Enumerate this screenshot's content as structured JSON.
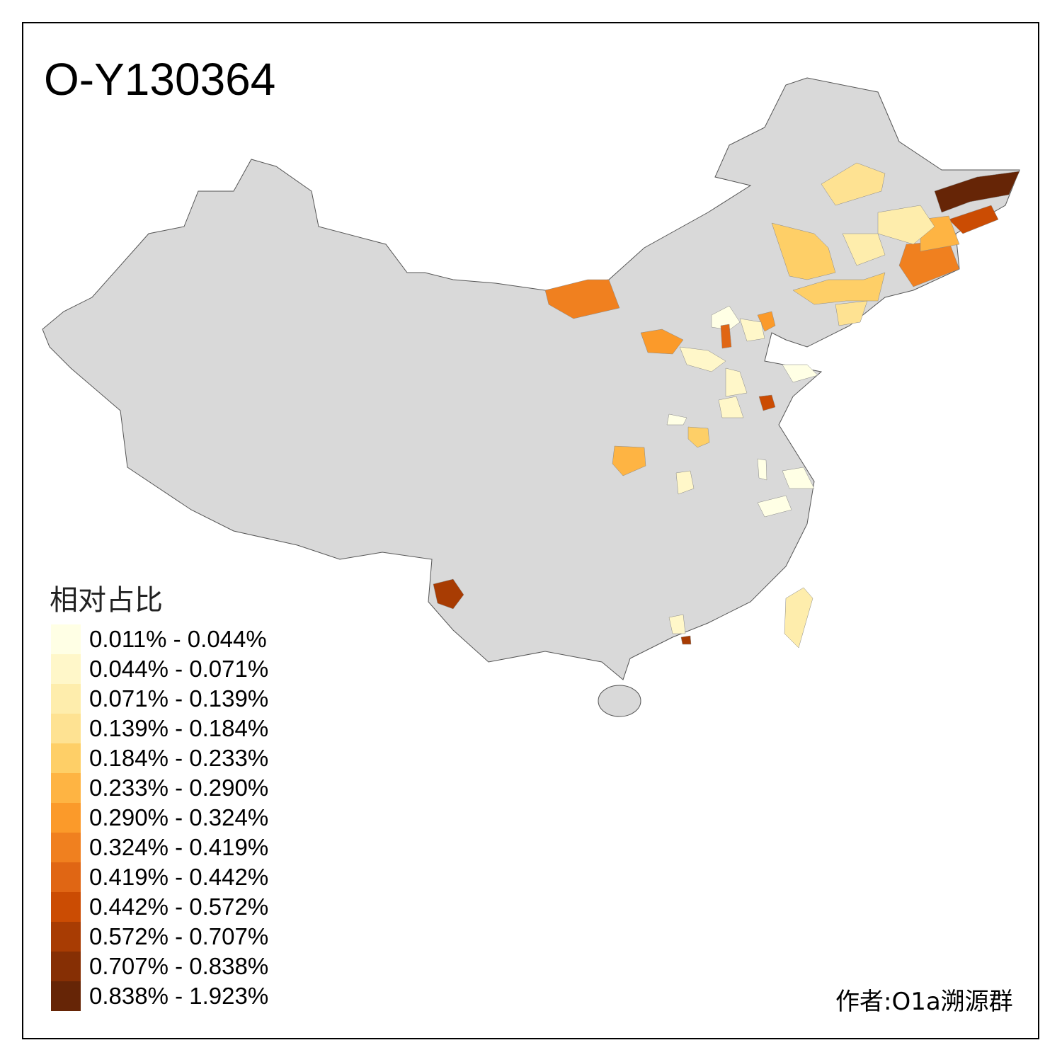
{
  "title": "O-Y130364",
  "legend": {
    "title": "相对占比",
    "items": [
      {
        "label": "0.011% - 0.044%",
        "color": "#FFFFE5"
      },
      {
        "label": "0.044% - 0.071%",
        "color": "#FFF7C9"
      },
      {
        "label": "0.071% - 0.139%",
        "color": "#FEEDAC"
      },
      {
        "label": "0.139% - 0.184%",
        "color": "#FEE292"
      },
      {
        "label": "0.184% - 0.233%",
        "color": "#FECF67"
      },
      {
        "label": "0.233% - 0.290%",
        "color": "#FEB443"
      },
      {
        "label": "0.290% - 0.324%",
        "color": "#FB9A2A"
      },
      {
        "label": "0.324% - 0.419%",
        "color": "#F0801F"
      },
      {
        "label": "0.419% - 0.442%",
        "color": "#E06614"
      },
      {
        "label": "0.442% - 0.572%",
        "color": "#CB4C03"
      },
      {
        "label": "0.572% - 0.707%",
        "color": "#A83C03"
      },
      {
        "label": "0.707% - 0.838%",
        "color": "#862F04"
      },
      {
        "label": "0.838% - 1.923%",
        "color": "#662506"
      }
    ]
  },
  "map": {
    "base_color": "#D9D9D9",
    "border_color": "#555555"
  },
  "author": "作者:O1a溯源群"
}
